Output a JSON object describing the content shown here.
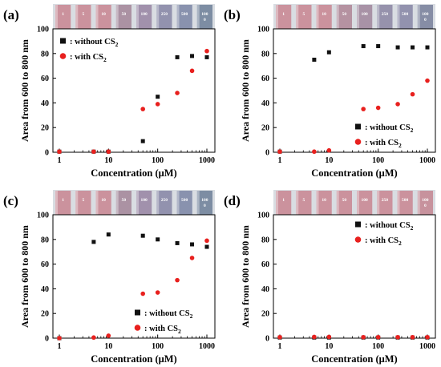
{
  "chart_data": [
    {
      "panel_label": "(a)",
      "type": "scatter",
      "xlabel": "Concentration (μM)",
      "ylabel": "Area from 600 to 800 nm",
      "xscale": "log",
      "xlim": [
        1,
        1000
      ],
      "ylim": [
        0,
        100
      ],
      "x_ticks": [
        "1",
        "10",
        "100",
        "1000"
      ],
      "y_ticks": [
        "0",
        "20",
        "40",
        "60",
        "80",
        "100"
      ],
      "legend_position": "top-left",
      "vial_labels": [
        "1",
        "5",
        "10",
        "50",
        "100",
        "250",
        "500",
        "100\n0"
      ],
      "vial_colors": [
        "#c98a96",
        "#c98a96",
        "#c98a96",
        "#a58a9c",
        "#9a88a6",
        "#8a8aa8",
        "#7f8aa8",
        "#72849c"
      ],
      "series": [
        {
          "name": "without CS₂",
          "marker": "square",
          "color": "#111111",
          "x": [
            1,
            5,
            10,
            50,
            100,
            250,
            500,
            1000
          ],
          "y": [
            0.5,
            0.5,
            0.5,
            9,
            45,
            77,
            78,
            77
          ]
        },
        {
          "name": "with CS₂",
          "marker": "circle",
          "color": "#e8201e",
          "x": [
            1,
            5,
            10,
            50,
            100,
            250,
            500,
            1000
          ],
          "y": [
            0.5,
            0.5,
            0.5,
            35,
            39,
            48,
            66,
            82
          ]
        }
      ]
    },
    {
      "panel_label": "(b)",
      "type": "scatter",
      "xlabel": "Concentration (μM)",
      "ylabel": "Area from 600 to 800 nm",
      "xscale": "log",
      "xlim": [
        1,
        1000
      ],
      "ylim": [
        0,
        100
      ],
      "x_ticks": [
        "1",
        "10",
        "100",
        "1000"
      ],
      "y_ticks": [
        "0",
        "20",
        "40",
        "60",
        "80",
        "100"
      ],
      "legend_position": "bottom-right",
      "vial_labels": [
        "1",
        "5",
        "10",
        "50",
        "100",
        "250",
        "500",
        "100\n0"
      ],
      "vial_colors": [
        "#c98a96",
        "#c98a96",
        "#c98a96",
        "#b08a9a",
        "#a28aa0",
        "#8e8aa6",
        "#8a8aa8",
        "#7c849e"
      ],
      "series": [
        {
          "name": "without CS₂",
          "marker": "square",
          "color": "#111111",
          "x": [
            1,
            5,
            10,
            50,
            100,
            250,
            500,
            1000
          ],
          "y": [
            0.5,
            75,
            81,
            86,
            86,
            85,
            85,
            85
          ]
        },
        {
          "name": "with CS₂",
          "marker": "circle",
          "color": "#e8201e",
          "x": [
            1,
            5,
            10,
            50,
            100,
            250,
            500,
            1000
          ],
          "y": [
            0.5,
            0.5,
            1.5,
            35,
            36,
            39,
            47,
            58
          ]
        }
      ]
    },
    {
      "panel_label": "(c)",
      "type": "scatter",
      "xlabel": "Concentration (μM)",
      "ylabel": "Area from 600 to 800 nm",
      "xscale": "log",
      "xlim": [
        1,
        1000
      ],
      "ylim": [
        0,
        100
      ],
      "x_ticks": [
        "1",
        "10",
        "100",
        "1000"
      ],
      "y_ticks": [
        "0",
        "20",
        "40",
        "60",
        "80",
        "100"
      ],
      "legend_position": "bottom-right",
      "vial_labels": [
        "1",
        "5",
        "10",
        "50",
        "100",
        "250",
        "500",
        "100\n0"
      ],
      "vial_colors": [
        "#c98a96",
        "#c98a96",
        "#c98a96",
        "#a58a9c",
        "#9a88a6",
        "#8a8aa8",
        "#7f8aa8",
        "#72849c"
      ],
      "series": [
        {
          "name": "without CS₂",
          "marker": "square",
          "color": "#111111",
          "x": [
            1,
            5,
            10,
            50,
            100,
            250,
            500,
            1000
          ],
          "y": [
            0,
            78,
            84,
            83,
            80,
            77,
            76,
            74
          ]
        },
        {
          "name": "with CS₂",
          "marker": "circle",
          "color": "#e8201e",
          "x": [
            1,
            5,
            10,
            50,
            100,
            250,
            500,
            1000
          ],
          "y": [
            0,
            0.5,
            2,
            36,
            37,
            47,
            65,
            79
          ]
        }
      ]
    },
    {
      "panel_label": "(d)",
      "type": "scatter",
      "xlabel": "Concentration (μM)",
      "ylabel": "Area from 600 to 800 nm",
      "xscale": "log",
      "xlim": [
        1,
        1000
      ],
      "ylim": [
        0,
        100
      ],
      "x_ticks": [
        "1",
        "10",
        "100",
        "1000"
      ],
      "y_ticks": [
        "0",
        "20",
        "40",
        "60",
        "80",
        "100"
      ],
      "legend_position": "top-right",
      "vial_labels": [
        "1",
        "5",
        "10",
        "50",
        "100",
        "250",
        "500",
        "100\n0"
      ],
      "vial_colors": [
        "#c98a96",
        "#c98a96",
        "#c98a96",
        "#c98a96",
        "#c98a96",
        "#c98a96",
        "#c98a96",
        "#c48a96"
      ],
      "series": [
        {
          "name": "without CS₂",
          "marker": "square",
          "color": "#111111",
          "x": [
            1,
            5,
            10,
            50,
            100,
            250,
            500,
            1000
          ],
          "y": [
            0.5,
            0.5,
            0.5,
            0.5,
            0.5,
            0.5,
            0.5,
            0.5
          ]
        },
        {
          "name": "with CS₂",
          "marker": "circle",
          "color": "#e8201e",
          "x": [
            1,
            5,
            10,
            50,
            100,
            250,
            500,
            1000
          ],
          "y": [
            0.8,
            1,
            1,
            0.8,
            0.8,
            0.8,
            0.8,
            0.8
          ]
        }
      ]
    }
  ]
}
